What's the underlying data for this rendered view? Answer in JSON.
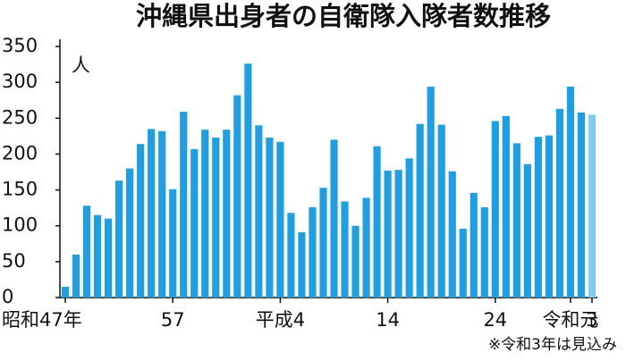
{
  "chart_data": {
    "type": "bar",
    "title": "沖縄県出身者の自衛隊入隊者数推移",
    "y_unit": "人",
    "note": "※令和3年は見込み",
    "categories": [
      "昭和47年",
      null,
      null,
      null,
      null,
      null,
      null,
      null,
      null,
      null,
      "57",
      null,
      null,
      null,
      null,
      null,
      null,
      null,
      null,
      null,
      "平成4",
      null,
      null,
      null,
      null,
      null,
      null,
      null,
      null,
      null,
      "14",
      null,
      null,
      null,
      null,
      null,
      null,
      null,
      null,
      null,
      "24",
      null,
      null,
      null,
      null,
      null,
      null,
      "令和元",
      null,
      "3"
    ],
    "values": [
      15,
      60,
      128,
      115,
      110,
      163,
      180,
      214,
      235,
      232,
      151,
      259,
      207,
      234,
      223,
      234,
      282,
      326,
      240,
      223,
      217,
      118,
      91,
      126,
      153,
      220,
      134,
      100,
      139,
      211,
      177,
      178,
      194,
      242,
      294,
      241,
      176,
      96,
      146,
      126,
      246,
      253,
      215,
      186,
      224,
      226,
      263,
      294,
      258,
      255
    ],
    "colors": [
      "#1e9fe3",
      "#1e9fe3",
      "#1e9fe3",
      "#1e9fe3",
      "#1e9fe3",
      "#1e9fe3",
      "#1e9fe3",
      "#1e9fe3",
      "#1e9fe3",
      "#1e9fe3",
      "#1e9fe3",
      "#1e9fe3",
      "#1e9fe3",
      "#1e9fe3",
      "#1e9fe3",
      "#1e9fe3",
      "#1e9fe3",
      "#1e9fe3",
      "#1e9fe3",
      "#1e9fe3",
      "#1e9fe3",
      "#1e9fe3",
      "#1e9fe3",
      "#1e9fe3",
      "#1e9fe3",
      "#1e9fe3",
      "#1e9fe3",
      "#1e9fe3",
      "#1e9fe3",
      "#1e9fe3",
      "#1e9fe3",
      "#1e9fe3",
      "#1e9fe3",
      "#1e9fe3",
      "#1e9fe3",
      "#1e9fe3",
      "#1e9fe3",
      "#1e9fe3",
      "#1e9fe3",
      "#1e9fe3",
      "#1e9fe3",
      "#1e9fe3",
      "#1e9fe3",
      "#1e9fe3",
      "#1e9fe3",
      "#1e9fe3",
      "#1e9fe3",
      "#1e9fe3",
      "#1e9fe3",
      "#7fcbf2"
    ],
    "ylim": [
      0,
      350
    ],
    "yticks": [
      0,
      50,
      100,
      150,
      200,
      250,
      300,
      350
    ],
    "grid": false
  }
}
